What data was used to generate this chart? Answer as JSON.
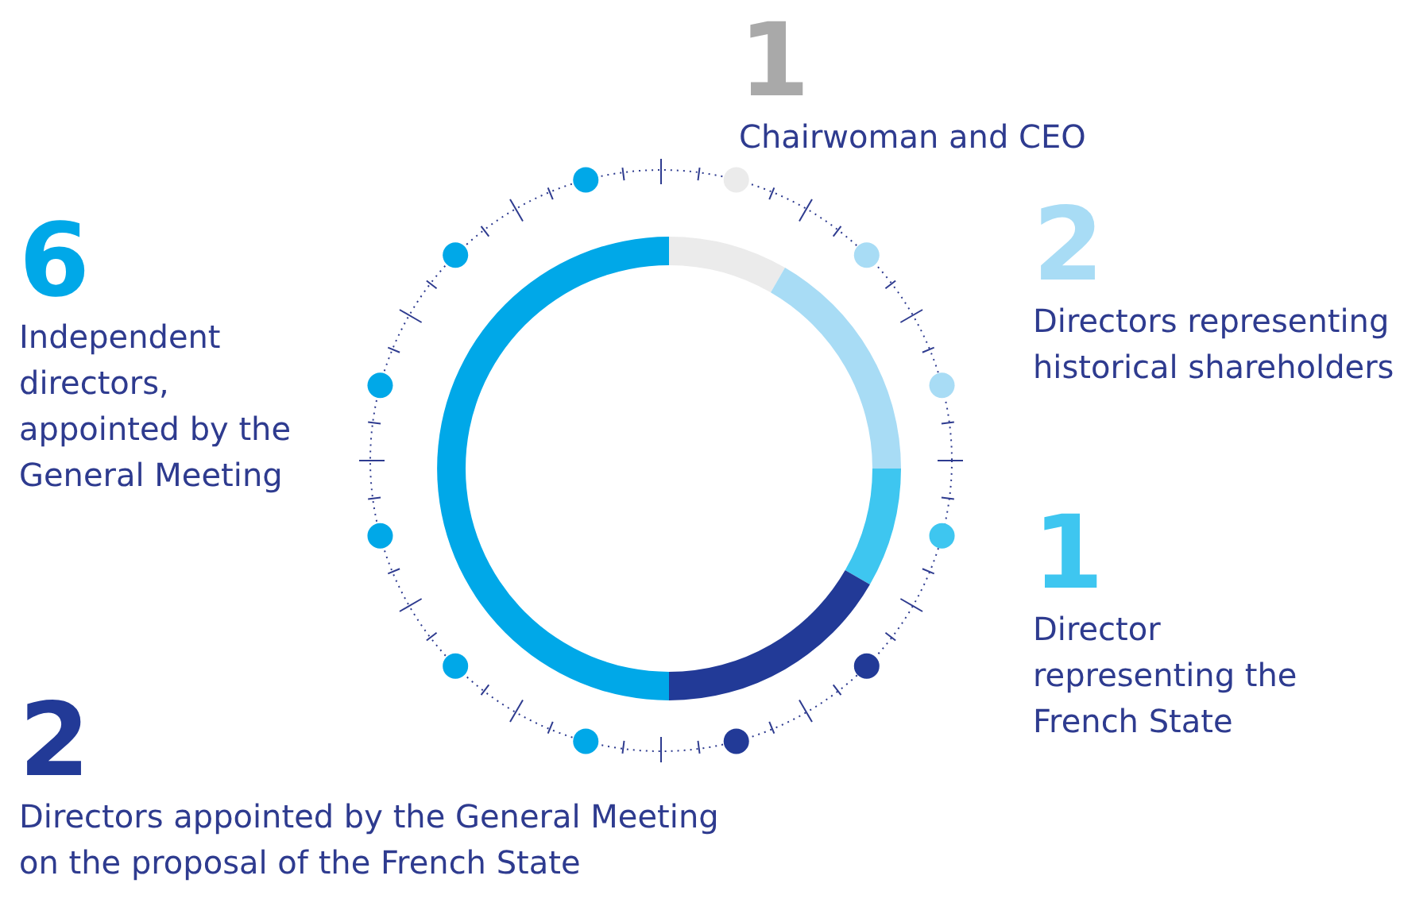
{
  "chart_data": {
    "type": "donut",
    "categories": [
      "Chairwoman and CEO",
      "Directors representing historical shareholders",
      "Director representing the French State",
      "Directors appointed by the General Meeting on the proposal of the French State",
      "Independent directors, appointed by the General Meeting"
    ],
    "values": [
      1,
      2,
      1,
      2,
      6
    ],
    "colors": [
      "#ebebeb",
      "#a8dcf5",
      "#3ec6f0",
      "#223a97",
      "#00a8e8"
    ],
    "data_labels": true
  }
}
